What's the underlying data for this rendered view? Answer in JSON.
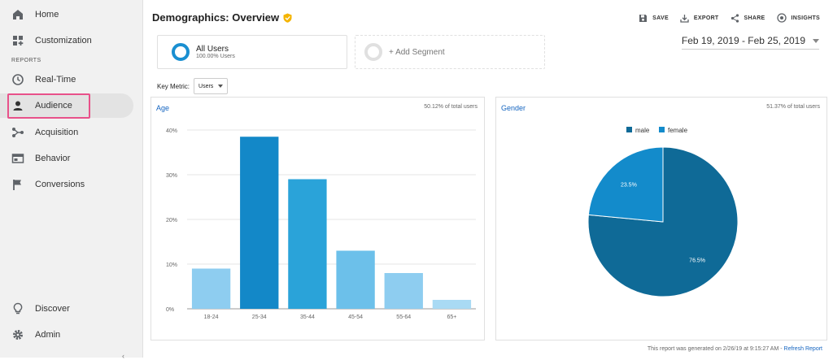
{
  "sidebar": {
    "items": [
      {
        "label": "Home",
        "icon": "home-icon"
      },
      {
        "label": "Customization",
        "icon": "dashboard-icon"
      },
      {
        "label": "Real-Time",
        "icon": "clock-icon"
      },
      {
        "label": "Audience",
        "icon": "person-icon"
      },
      {
        "label": "Acquisition",
        "icon": "acquisition-icon"
      },
      {
        "label": "Behavior",
        "icon": "behavior-icon"
      },
      {
        "label": "Conversions",
        "icon": "flag-icon"
      },
      {
        "label": "Discover",
        "icon": "lightbulb-icon"
      },
      {
        "label": "Admin",
        "icon": "gear-icon"
      }
    ],
    "section_label": "REPORTS",
    "collapse": "‹"
  },
  "header": {
    "title": "Demographics: Overview",
    "toolbar": {
      "save": "SAVE",
      "export": "EXPORT",
      "share": "SHARE",
      "insights": "INSIGHTS"
    }
  },
  "segments": {
    "all_users": {
      "title": "All Users",
      "subtitle": "100.00% Users"
    },
    "add": "+ Add Segment"
  },
  "date_range": "Feb 19, 2019 - Feb 25, 2019",
  "key_metric": {
    "label": "Key Metric:",
    "value": "Users"
  },
  "panels": {
    "age": {
      "title": "Age",
      "pct": "50.12% of total users"
    },
    "gender": {
      "title": "Gender",
      "pct": "51.37% of total users"
    }
  },
  "footer": {
    "text": "This report was generated on 2/26/19 at 9:15:27 AM - ",
    "link": "Refresh Report"
  },
  "chart_data": [
    {
      "type": "bar",
      "title": "Age",
      "categories": [
        "18-24",
        "25-34",
        "35-44",
        "45-54",
        "55-64",
        "65+"
      ],
      "values": [
        9,
        38.5,
        29,
        13,
        8,
        2
      ],
      "colors": [
        "#8ecdf0",
        "#1388c8",
        "#2aa3d9",
        "#6cc0ea",
        "#8ecdf0",
        "#a9daf4"
      ],
      "ylim": [
        0,
        40
      ],
      "yticks": [
        "0%",
        "10%",
        "20%",
        "30%",
        "40%"
      ],
      "grid": true
    },
    {
      "type": "pie",
      "title": "Gender",
      "labels": [
        "male",
        "female"
      ],
      "values": [
        76.5,
        23.5
      ],
      "value_labels": [
        "76.5%",
        "23.5%"
      ],
      "colors": [
        "#0f6a97",
        "#138bcb"
      ],
      "legend": "top"
    }
  ]
}
